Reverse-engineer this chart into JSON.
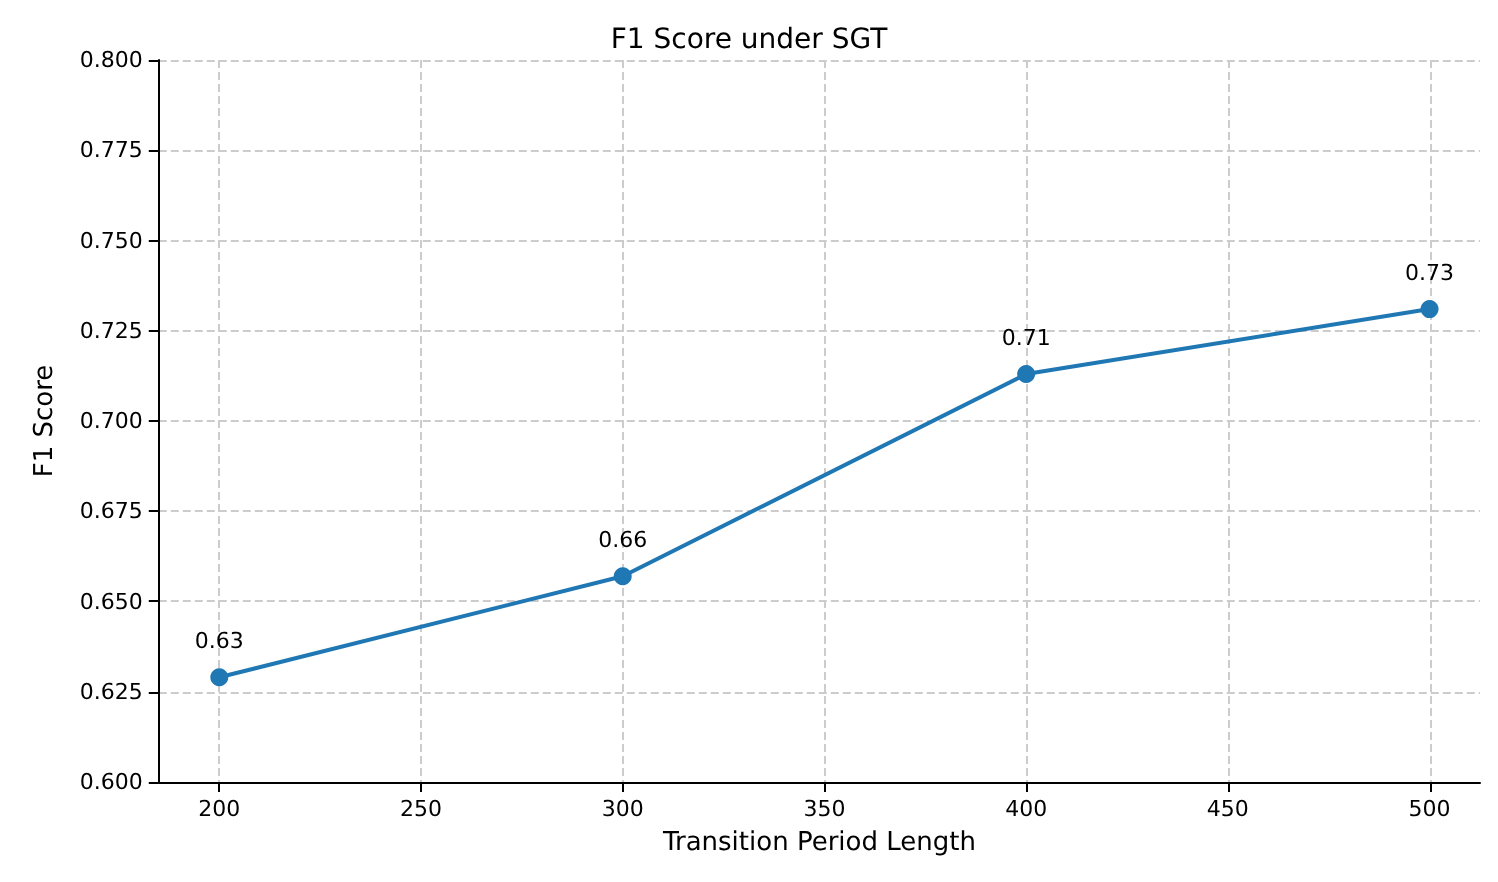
{
  "chart_data": {
    "type": "line",
    "title": "F1 Score under SGT",
    "xlabel": "Transition Period Length",
    "ylabel": "F1 Score",
    "x": [
      200,
      300,
      400,
      500
    ],
    "series": [
      {
        "color": "#1f77b4",
        "values": [
          0.629,
          0.657,
          0.713,
          0.731
        ],
        "value_labels": [
          "0.63",
          "0.66",
          "0.71",
          "0.73"
        ]
      }
    ],
    "xlim": [
      185,
      512.5
    ],
    "xticks": [
      200,
      250,
      300,
      350,
      400,
      450,
      500
    ],
    "ylim": [
      0.6,
      0.8
    ],
    "yticks": [
      {
        "value": 0.6,
        "label": "0.600"
      },
      {
        "value": 0.625,
        "label": "0.625"
      },
      {
        "value": 0.65,
        "label": "0.650"
      },
      {
        "value": 0.675,
        "label": "0.675"
      },
      {
        "value": 0.7,
        "label": "0.700"
      },
      {
        "value": 0.725,
        "label": "0.725"
      },
      {
        "value": 0.75,
        "label": "0.750"
      },
      {
        "value": 0.775,
        "label": "0.775"
      },
      {
        "value": 0.8,
        "label": "0.800"
      }
    ],
    "grid": true,
    "marker": "circle",
    "line_style": "solid"
  }
}
